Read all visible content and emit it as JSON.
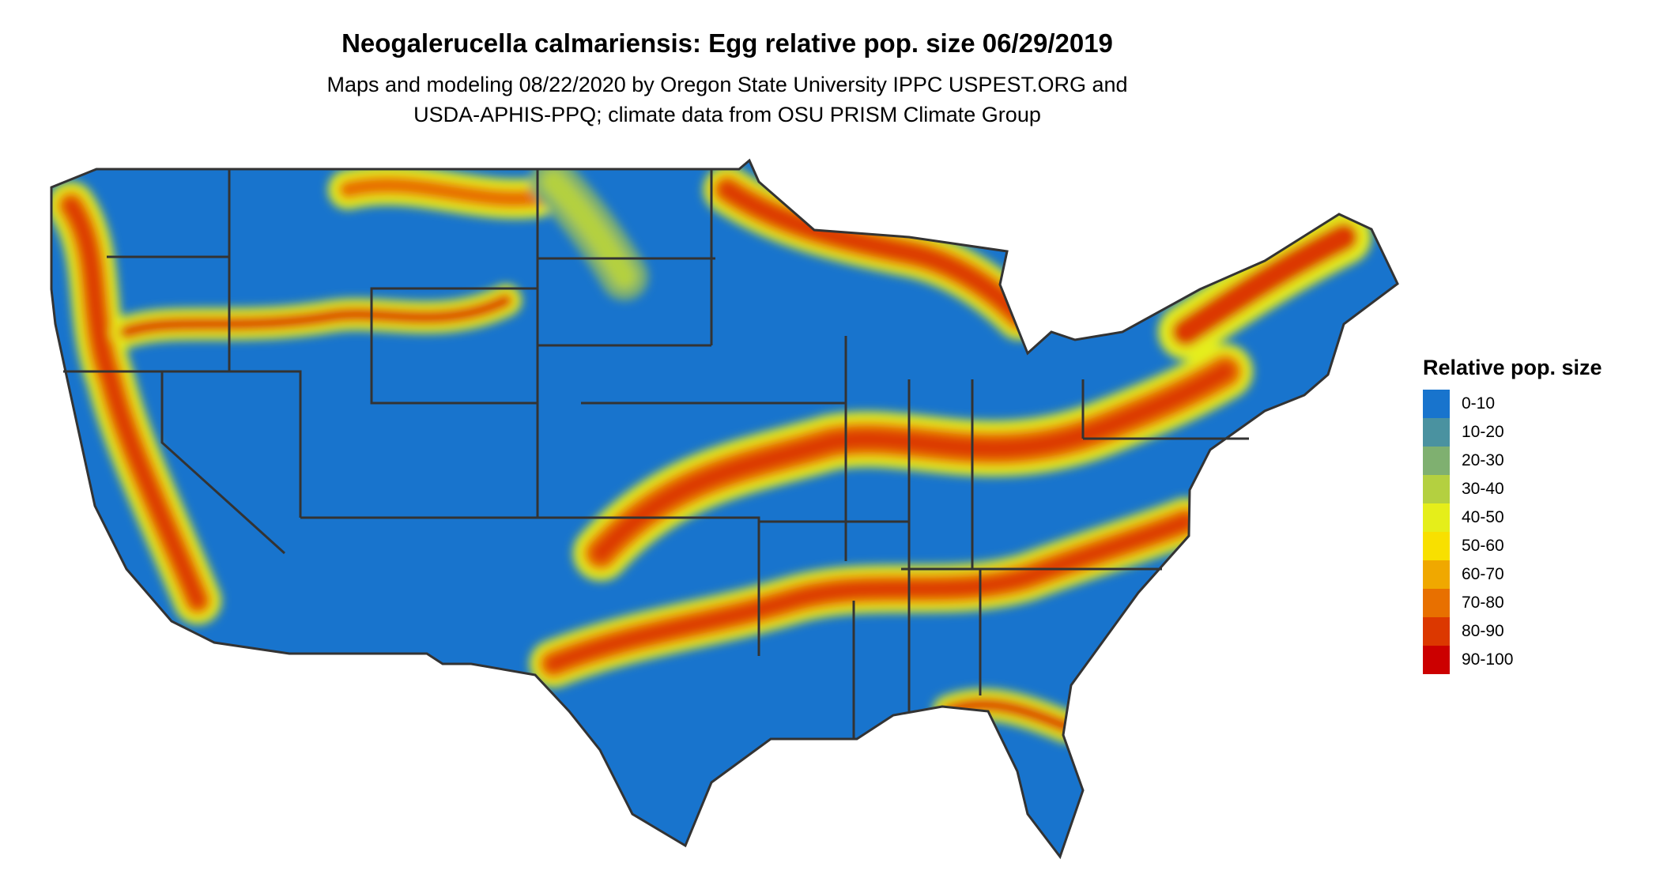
{
  "chart_data": {
    "type": "heatmap",
    "title": "Neogalerucella calmariensis: Egg relative pop. size 06/29/2019",
    "subtitle_lines": [
      "Maps and modeling 08/22/2020 by Oregon State University IPPC USPEST.ORG and",
      "USDA-APHIS-PPQ; climate data from OSU PRISM Climate Group"
    ],
    "region": "Contiguous United States",
    "legend": {
      "title": "Relative pop. size",
      "placement": "right",
      "categories": [
        "0-10",
        "10-20",
        "20-30",
        "30-40",
        "40-50",
        "50-60",
        "60-70",
        "70-80",
        "80-90",
        "90-100"
      ],
      "colors": [
        "#1874CD",
        "#4A92A0",
        "#7FB070",
        "#B4D040",
        "#E5EE1A",
        "#F8E000",
        "#F0A800",
        "#E87000",
        "#DC3800",
        "#CC0000"
      ]
    }
  }
}
